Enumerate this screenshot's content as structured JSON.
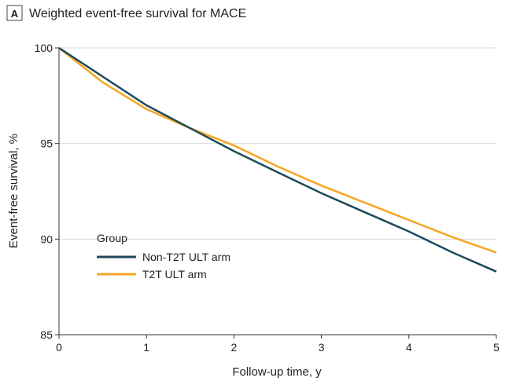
{
  "panel_label": "A",
  "chart_data": {
    "type": "line",
    "title": "Weighted event-free survival for MACE",
    "xlabel": "Follow-up time, y",
    "ylabel": "Event-free survival, %",
    "xlim": [
      0,
      5
    ],
    "ylim": [
      85,
      100
    ],
    "xticks": [
      0,
      1,
      2,
      3,
      4,
      5
    ],
    "yticks": [
      85,
      90,
      95,
      100
    ],
    "grid": "horizontal",
    "legend": {
      "title": "Group",
      "placement": "bottom-left"
    },
    "series": [
      {
        "name": "Non-T2T ULT arm",
        "color": "#1d4a5a",
        "x": [
          0,
          0.5,
          1,
          1.5,
          2,
          2.5,
          3,
          3.5,
          4,
          4.5,
          5
        ],
        "y": [
          100,
          98.5,
          97.0,
          95.8,
          94.6,
          93.5,
          92.4,
          91.4,
          90.4,
          89.3,
          88.3
        ]
      },
      {
        "name": "T2T ULT arm",
        "color": "#f5a623",
        "x": [
          0,
          0.5,
          1,
          1.5,
          2,
          2.5,
          3,
          3.5,
          4,
          4.5,
          5
        ],
        "y": [
          100,
          98.2,
          96.8,
          95.8,
          94.9,
          93.8,
          92.8,
          91.9,
          91.0,
          90.1,
          89.3
        ]
      }
    ]
  }
}
